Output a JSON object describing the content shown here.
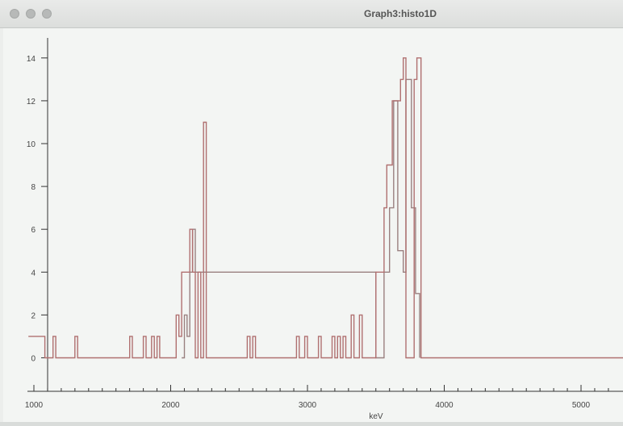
{
  "window": {
    "title": "Graph3:histo1D",
    "buttons": [
      "close-button",
      "minimize-button",
      "zoom-button"
    ]
  },
  "colors": {
    "histogram_line": "#b07070",
    "axis": "#333333",
    "background": "#f3f5f3"
  },
  "chart_data": {
    "type": "histogram-step",
    "title": "",
    "xlabel": "keV",
    "ylabel": "",
    "xlim": [
      1000,
      5300
    ],
    "ylim": [
      -1,
      15.5
    ],
    "x_ticks": [
      1000,
      2000,
      3000,
      4000,
      5000
    ],
    "y_ticks": [
      0,
      2,
      4,
      6,
      8,
      10,
      12,
      14
    ],
    "grid": false,
    "legend": "none",
    "bin_width": 20,
    "bins": [
      [
        960,
        1
      ],
      [
        1000,
        1
      ],
      [
        1080,
        0
      ],
      [
        1140,
        1
      ],
      [
        1160,
        0
      ],
      [
        1300,
        1
      ],
      [
        1320,
        0
      ],
      [
        1700,
        1
      ],
      [
        1720,
        0
      ],
      [
        1800,
        1
      ],
      [
        1820,
        0
      ],
      [
        1860,
        1
      ],
      [
        1880,
        0
      ],
      [
        1900,
        1
      ],
      [
        1920,
        0
      ],
      [
        2040,
        2
      ],
      [
        2060,
        1
      ],
      [
        2080,
        4
      ],
      [
        2140,
        6
      ],
      [
        2160,
        4
      ],
      [
        2180,
        0
      ],
      [
        2200,
        4
      ],
      [
        2220,
        0
      ],
      [
        2240,
        11
      ],
      [
        2260,
        0
      ],
      [
        2560,
        1
      ],
      [
        2580,
        0
      ],
      [
        2600,
        1
      ],
      [
        2620,
        0
      ],
      [
        2920,
        1
      ],
      [
        2940,
        0
      ],
      [
        2980,
        1
      ],
      [
        3000,
        0
      ],
      [
        3080,
        1
      ],
      [
        3100,
        0
      ],
      [
        3180,
        1
      ],
      [
        3200,
        0
      ],
      [
        3220,
        1
      ],
      [
        3240,
        0
      ],
      [
        3260,
        1
      ],
      [
        3280,
        0
      ],
      [
        3320,
        2
      ],
      [
        3340,
        0
      ],
      [
        3380,
        2
      ],
      [
        3400,
        0
      ],
      [
        3500,
        4
      ],
      [
        3560,
        7
      ],
      [
        3580,
        9
      ],
      [
        3620,
        12
      ],
      [
        3680,
        13
      ],
      [
        3700,
        14
      ],
      [
        3720,
        0
      ],
      [
        3780,
        13
      ],
      [
        3800,
        14
      ],
      [
        3830,
        0
      ],
      [
        5400,
        0
      ]
    ],
    "overlay_bins": [
      [
        2080,
        0
      ],
      [
        2100,
        2
      ],
      [
        2120,
        1
      ],
      [
        2140,
        4
      ],
      [
        2160,
        6
      ],
      [
        2180,
        4
      ],
      [
        3500,
        0
      ],
      [
        3560,
        4
      ],
      [
        3600,
        7
      ],
      [
        3630,
        12
      ],
      [
        3660,
        5
      ],
      [
        3700,
        4
      ],
      [
        3720,
        13
      ],
      [
        3760,
        7
      ],
      [
        3790,
        3
      ],
      [
        3820,
        0
      ]
    ]
  }
}
